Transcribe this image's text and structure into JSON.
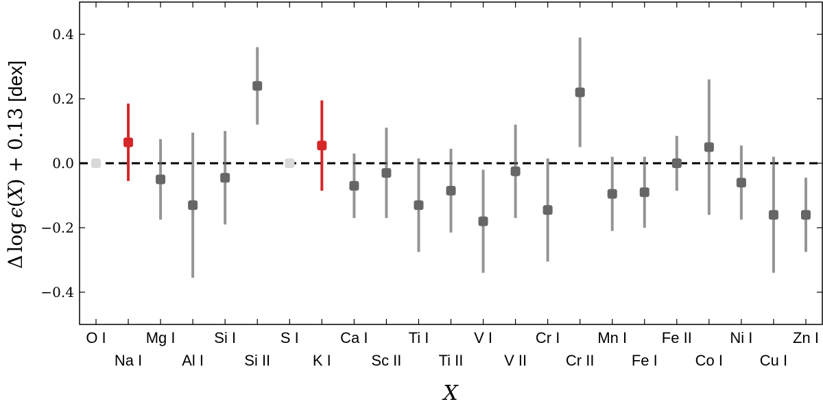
{
  "chart_data": {
    "type": "scatter",
    "xlabel": "X",
    "ylabel_parts": {
      "delta": "Δ",
      "log": "log",
      "epsilon": "ϵ",
      "open": "(",
      "x": "X",
      "close": ")",
      "offset": " + 0.13",
      "unit": "[dex]"
    },
    "ylim": [
      -0.5,
      0.5
    ],
    "yticks": [
      -0.4,
      -0.2,
      0.0,
      0.2,
      0.4
    ],
    "ytick_labels": [
      "−0.4",
      "−0.2",
      "0.0",
      "0.2",
      "0.4"
    ],
    "reference_line_y": 0.0,
    "grid": false,
    "colors": {
      "default": "#666666",
      "highlight": "#d62728",
      "faint": "#d9d9d9",
      "reference_line": "#000000"
    },
    "points": [
      {
        "label": "O I",
        "y": 0.0,
        "err_low": 0.0,
        "err_high": 0.0,
        "style": "faint"
      },
      {
        "label": "Na I",
        "y": 0.065,
        "err_low": -0.055,
        "err_high": 0.185,
        "style": "highlight"
      },
      {
        "label": "Mg I",
        "y": -0.05,
        "err_low": -0.175,
        "err_high": 0.075,
        "style": "default"
      },
      {
        "label": "Al I",
        "y": -0.13,
        "err_low": -0.355,
        "err_high": 0.095,
        "style": "default"
      },
      {
        "label": "Si I",
        "y": -0.045,
        "err_low": -0.19,
        "err_high": 0.1,
        "style": "default"
      },
      {
        "label": "Si II",
        "y": 0.24,
        "err_low": 0.12,
        "err_high": 0.36,
        "style": "default"
      },
      {
        "label": "S I",
        "y": 0.0,
        "err_low": 0.0,
        "err_high": 0.0,
        "style": "faint"
      },
      {
        "label": "K I",
        "y": 0.055,
        "err_low": -0.085,
        "err_high": 0.195,
        "style": "highlight"
      },
      {
        "label": "Ca I",
        "y": -0.07,
        "err_low": -0.17,
        "err_high": 0.03,
        "style": "default"
      },
      {
        "label": "Sc II",
        "y": -0.03,
        "err_low": -0.17,
        "err_high": 0.11,
        "style": "default"
      },
      {
        "label": "Ti I",
        "y": -0.13,
        "err_low": -0.275,
        "err_high": 0.015,
        "style": "default"
      },
      {
        "label": "Ti II",
        "y": -0.085,
        "err_low": -0.215,
        "err_high": 0.045,
        "style": "default"
      },
      {
        "label": "V I",
        "y": -0.18,
        "err_low": -0.34,
        "err_high": -0.02,
        "style": "default"
      },
      {
        "label": "V II",
        "y": -0.025,
        "err_low": -0.17,
        "err_high": 0.12,
        "style": "default"
      },
      {
        "label": "Cr I",
        "y": -0.145,
        "err_low": -0.305,
        "err_high": 0.015,
        "style": "default"
      },
      {
        "label": "Cr II",
        "y": 0.22,
        "err_low": 0.05,
        "err_high": 0.39,
        "style": "default"
      },
      {
        "label": "Mn I",
        "y": -0.095,
        "err_low": -0.21,
        "err_high": 0.02,
        "style": "default"
      },
      {
        "label": "Fe I",
        "y": -0.09,
        "err_low": -0.2,
        "err_high": 0.02,
        "style": "default"
      },
      {
        "label": "Fe II",
        "y": 0.0,
        "err_low": -0.085,
        "err_high": 0.085,
        "style": "default"
      },
      {
        "label": "Co I",
        "y": 0.05,
        "err_low": -0.16,
        "err_high": 0.26,
        "style": "default"
      },
      {
        "label": "Ni I",
        "y": -0.06,
        "err_low": -0.175,
        "err_high": 0.055,
        "style": "default"
      },
      {
        "label": "Cu I",
        "y": -0.16,
        "err_low": -0.34,
        "err_high": 0.02,
        "style": "default"
      },
      {
        "label": "Zn I",
        "y": -0.16,
        "err_low": -0.275,
        "err_high": -0.045,
        "style": "default"
      }
    ]
  }
}
